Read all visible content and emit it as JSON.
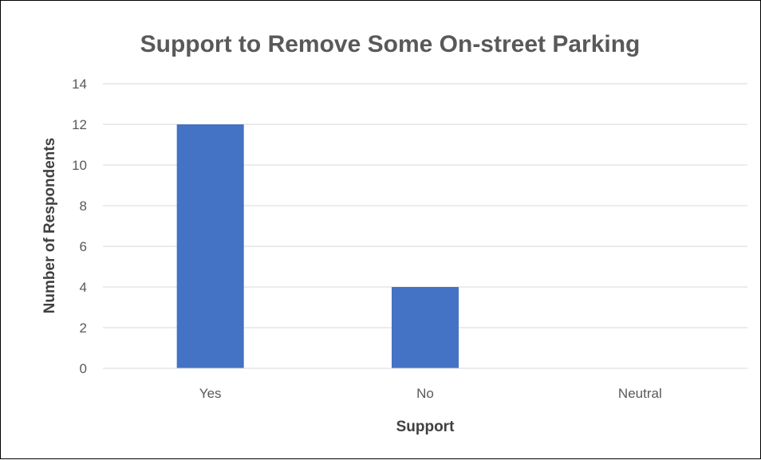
{
  "chart_data": {
    "type": "bar",
    "title": "Support to Remove Some On-street Parking",
    "xlabel": "Support",
    "ylabel": "Number of Respondents",
    "categories": [
      "Yes",
      "No",
      "Neutral"
    ],
    "values": [
      12,
      4,
      0
    ],
    "ylim": [
      0,
      14
    ],
    "yticks": [
      "0",
      "2",
      "4",
      "6",
      "8",
      "10",
      "12",
      "14"
    ],
    "grid": true,
    "legend": "none",
    "bar_color": "#4472C4",
    "grid_color": "#D9D9D9"
  }
}
